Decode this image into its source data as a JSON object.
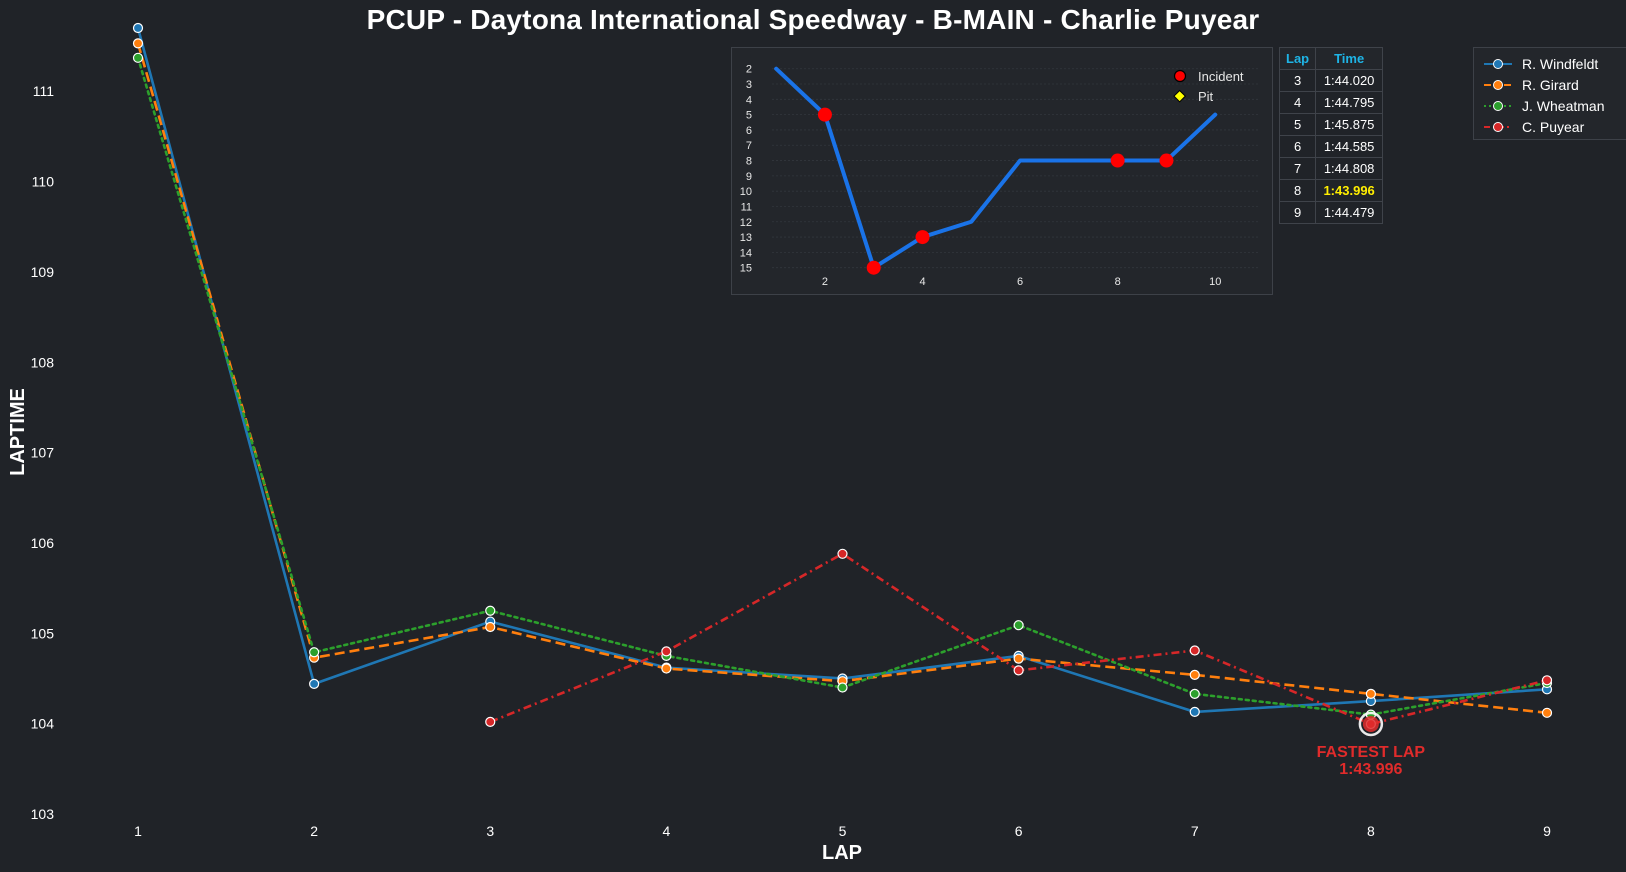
{
  "chart_data": [
    {
      "type": "line",
      "title": "PCUP - Daytona International Speedway - B-MAIN - Charlie Puyear",
      "xlabel": "LAP",
      "ylabel": "LAPTIME",
      "x": [
        1,
        2,
        3,
        4,
        5,
        6,
        7,
        8,
        9
      ],
      "xlim": [
        0.5,
        9.5
      ],
      "ylim": [
        103,
        111.7
      ],
      "yticks": [
        103,
        104,
        105,
        106,
        107,
        108,
        109,
        110,
        111
      ],
      "grid": false,
      "legend_position": "top-right",
      "series": [
        {
          "name": "R. Windfeldt",
          "color": "#1f77b4",
          "style": "solid",
          "dash": "",
          "values": [
            111.7,
            104.44,
            105.13,
            104.62,
            104.5,
            104.75,
            104.13,
            104.25,
            104.38
          ]
        },
        {
          "name": "R. Girard",
          "color": "#ff7f0e",
          "style": "dashed",
          "dash": "10,5",
          "values": [
            111.53,
            104.73,
            105.07,
            104.61,
            104.47,
            104.72,
            104.54,
            104.33,
            104.12
          ]
        },
        {
          "name": "J. Wheatman",
          "color": "#2ca02c",
          "style": "dotted",
          "dash": "3,4",
          "values": [
            111.37,
            104.79,
            105.25,
            104.75,
            104.4,
            105.09,
            104.33,
            104.1,
            104.45
          ]
        },
        {
          "name": "C. Puyear",
          "color": "#d62728",
          "style": "dashdot",
          "dash": "8,4,2,4",
          "values": [
            null,
            null,
            104.02,
            104.8,
            105.88,
            104.59,
            104.81,
            103.996,
            104.48
          ]
        }
      ],
      "annotation": {
        "label": "FASTEST LAP",
        "time": "1:43.996",
        "x": 8,
        "y": 103.996,
        "color": "#e02b2b"
      }
    },
    {
      "type": "line",
      "title": "",
      "x": [
        1,
        2,
        3,
        4,
        5,
        6,
        7,
        8,
        9,
        10
      ],
      "values": [
        2,
        5,
        15,
        13,
        12,
        8,
        8,
        8,
        8,
        5
      ],
      "ylim": [
        1.3,
        16
      ],
      "y_inverted": true,
      "yticks": [
        2,
        3,
        4,
        5,
        6,
        7,
        8,
        9,
        10,
        11,
        12,
        13,
        14,
        15
      ],
      "xticks": [
        2,
        4,
        6,
        8,
        10
      ],
      "xlim": [
        0.3,
        11
      ],
      "line_color": "#1a73e8",
      "incidents": [
        2,
        3,
        4,
        8,
        9
      ],
      "incident_color": "#ff0000",
      "pit_color": "#ffff00",
      "legend": [
        {
          "label": "Incident",
          "marker": "circle"
        },
        {
          "label": "Pit",
          "marker": "diamond"
        }
      ]
    }
  ],
  "lap_table": {
    "headers": [
      "Lap",
      "Time"
    ],
    "rows": [
      {
        "lap": "3",
        "time": "1:44.020"
      },
      {
        "lap": "4",
        "time": "1:44.795"
      },
      {
        "lap": "5",
        "time": "1:45.875"
      },
      {
        "lap": "6",
        "time": "1:44.585"
      },
      {
        "lap": "7",
        "time": "1:44.808"
      },
      {
        "lap": "8",
        "time": "1:43.996",
        "best": true
      },
      {
        "lap": "9",
        "time": "1:44.479"
      }
    ],
    "header_color": "#1eb4e6",
    "best_color": "#ffee00"
  }
}
